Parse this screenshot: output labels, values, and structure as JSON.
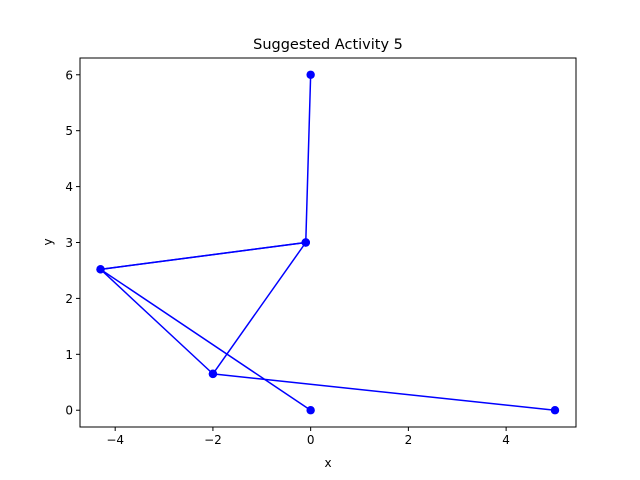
{
  "chart_data": {
    "type": "line",
    "title": "Suggested Activity 5",
    "xlabel": "x",
    "ylabel": "y",
    "xlim": [
      -4.72,
      5.43
    ],
    "ylim": [
      -0.3,
      6.3
    ],
    "xticks": [
      -4,
      -2,
      0,
      2,
      4
    ],
    "yticks": [
      0,
      1,
      2,
      3,
      4,
      5,
      6
    ],
    "grid": false,
    "color": "#0000ff",
    "series": [
      {
        "x": [
          0,
          -0.1,
          -4.3,
          -2.0,
          -0.1,
          -4.3,
          0
        ],
        "y": [
          6,
          3,
          2.52,
          0.65,
          3,
          2.52,
          0
        ]
      },
      {
        "x": [
          -2.0,
          5.0
        ],
        "y": [
          0.65,
          0
        ]
      }
    ]
  }
}
